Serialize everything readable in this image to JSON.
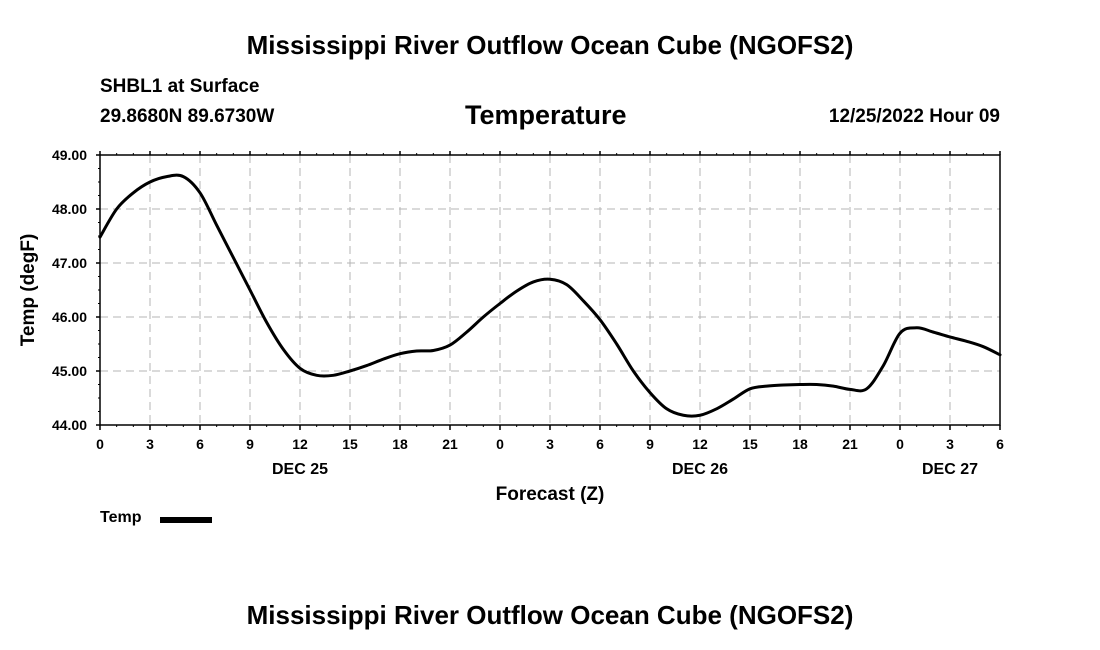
{
  "page": {
    "title_top": "Mississippi River Outflow Ocean Cube (NGOFS2)",
    "title_bottom": "Mississippi River Outflow Ocean Cube (NGOFS2)",
    "station": "SHBL1 at Surface",
    "coords": "29.8680N  89.6730W",
    "variable": "Temperature",
    "datetime": "12/25/2022 Hour 09"
  },
  "chart_data": {
    "type": "line",
    "title": "Temperature",
    "xlabel": "Forecast (Z)",
    "ylabel": "Temp (degF)",
    "xlim": [
      0,
      54
    ],
    "ylim": [
      44.0,
      49.0
    ],
    "yticks": [
      "44.00",
      "45.00",
      "46.00",
      "47.00",
      "48.00",
      "49.00"
    ],
    "xtick_labels": [
      "0",
      "3",
      "6",
      "9",
      "12",
      "15",
      "18",
      "21",
      "0",
      "3",
      "6",
      "9",
      "12",
      "15",
      "18",
      "21",
      "0",
      "3",
      "6"
    ],
    "day_labels": [
      {
        "hour": 12,
        "label": "DEC 25"
      },
      {
        "hour": 36,
        "label": "DEC 26"
      },
      {
        "hour": 51,
        "label": "DEC 27"
      }
    ],
    "grid": true,
    "legend": "bottom-left",
    "series": [
      {
        "name": "Temp",
        "color": "#000000",
        "x": [
          0,
          1,
          2,
          3,
          4,
          5,
          6,
          7,
          8,
          9,
          10,
          11,
          12,
          13,
          14,
          15,
          16,
          17,
          18,
          19,
          20,
          21,
          22,
          23,
          24,
          25,
          26,
          27,
          28,
          29,
          30,
          31,
          32,
          33,
          34,
          35,
          36,
          37,
          38,
          39,
          40,
          41,
          42,
          43,
          44,
          45,
          46,
          47,
          48,
          49,
          50,
          51,
          52,
          53,
          54
        ],
        "values": [
          47.48,
          48.0,
          48.3,
          48.5,
          48.6,
          48.6,
          48.3,
          47.7,
          47.1,
          46.5,
          45.9,
          45.4,
          45.05,
          44.92,
          44.92,
          45.0,
          45.1,
          45.22,
          45.32,
          45.37,
          45.38,
          45.48,
          45.72,
          46.0,
          46.25,
          46.48,
          46.65,
          46.7,
          46.6,
          46.3,
          45.95,
          45.5,
          45.0,
          44.6,
          44.3,
          44.18,
          44.18,
          44.3,
          44.48,
          44.67,
          44.72,
          44.74,
          44.75,
          44.75,
          44.72,
          44.66,
          44.67,
          45.1,
          45.7,
          45.8,
          45.72,
          45.63,
          45.55,
          45.45,
          45.3
        ]
      }
    ]
  }
}
